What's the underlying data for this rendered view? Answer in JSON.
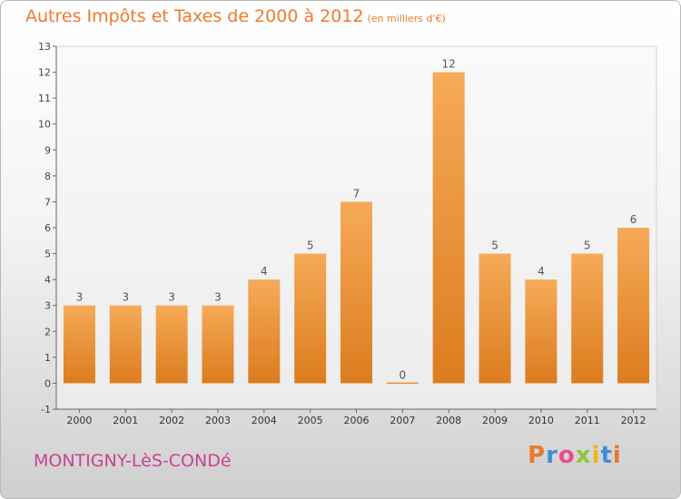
{
  "header": {
    "title": "Autres Impôts et Taxes de 2000 à 2012",
    "unit": "(en milliers d'€)"
  },
  "footer": {
    "town": "MONTIGNY-LèS-CONDé",
    "brand": "Proxiti",
    "brand_colors": [
      "#e8792c",
      "#3f8fd0",
      "#e84d8a",
      "#8dc63f",
      "#f3b31b",
      "#3f8fd0",
      "#e8792c"
    ]
  },
  "colors": {
    "title": "#ee7a2d",
    "town": "#c94294",
    "bar_top": "#f6aa58",
    "bar_bottom": "#dc7c1e"
  },
  "chart_data": {
    "type": "bar",
    "categories": [
      "2000",
      "2001",
      "2002",
      "2003",
      "2004",
      "2005",
      "2006",
      "2007",
      "2008",
      "2009",
      "2010",
      "2011",
      "2012"
    ],
    "values": [
      3,
      3,
      3,
      3,
      4,
      5,
      7,
      0,
      12,
      5,
      4,
      5,
      6
    ],
    "data_labels": [
      "3",
      "3",
      "3",
      "3",
      "4",
      "5",
      "7",
      "0",
      "12",
      "5",
      "4",
      "5",
      "6"
    ],
    "y_ticks": [
      -1,
      0,
      1,
      2,
      3,
      4,
      5,
      6,
      7,
      8,
      9,
      10,
      11,
      12,
      13
    ],
    "ylim": [
      -1,
      13
    ],
    "grid": false,
    "legend": "none"
  }
}
